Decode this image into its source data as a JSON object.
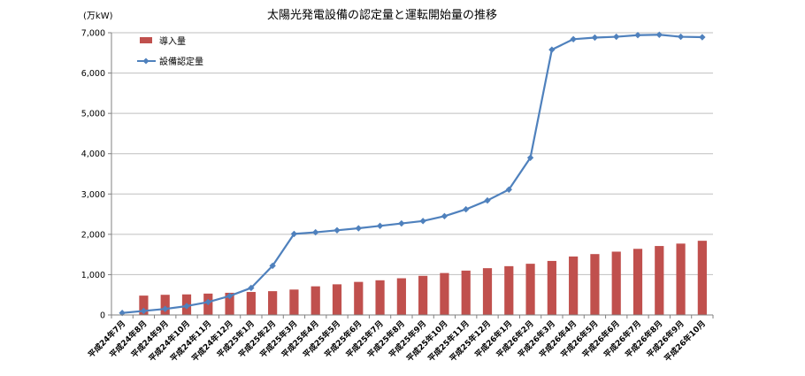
{
  "chart_data": {
    "type": "bar+line",
    "title": "太陽光発電設備の認定量と運転開始量の推移",
    "unit_label": "(万kW)",
    "ylim": [
      0,
      7000
    ],
    "yticks": [
      "0",
      "1,000",
      "2,000",
      "3,000",
      "4,000",
      "5,000",
      "6,000",
      "7,000"
    ],
    "ytick_values": [
      0,
      1000,
      2000,
      3000,
      4000,
      5000,
      6000,
      7000
    ],
    "grid": true,
    "legend_position": "top-left",
    "categories": [
      "平成24年7月",
      "平成24年8月",
      "平成24年9月",
      "平成24年10月",
      "平成24年11月",
      "平成24年12月",
      "平成25年1月",
      "平成25年2月",
      "平成25年3月",
      "平成25年4月",
      "平成25年5月",
      "平成25年6月",
      "平成25年7月",
      "平成25年8月",
      "平成25年9月",
      "平成25年10月",
      "平成25年11月",
      "平成25年12月",
      "平成26年1月",
      "平成26年2月",
      "平成26年3月",
      "平成26年4月",
      "平成26年5月",
      "平成26年6月",
      "平成26年7月",
      "平成26年8月",
      "平成26年9月",
      "平成26年10月"
    ],
    "series": [
      {
        "name": "導入量",
        "type": "bar",
        "color": "#C0504D",
        "values": [
          null,
          480,
          500,
          510,
          530,
          550,
          570,
          590,
          630,
          710,
          760,
          820,
          860,
          910,
          970,
          1040,
          1100,
          1160,
          1210,
          1270,
          1340,
          1450,
          1510,
          1570,
          1640,
          1710,
          1770,
          1840
        ]
      },
      {
        "name": "設備認定量",
        "type": "line",
        "color": "#4F81BD",
        "values": [
          50,
          100,
          150,
          220,
          320,
          470,
          670,
          1220,
          2010,
          2050,
          2100,
          2150,
          2210,
          2270,
          2330,
          2450,
          2620,
          2840,
          3110,
          3900,
          6580,
          6840,
          6880,
          6900,
          6940,
          6950,
          6900,
          6890
        ]
      }
    ]
  }
}
